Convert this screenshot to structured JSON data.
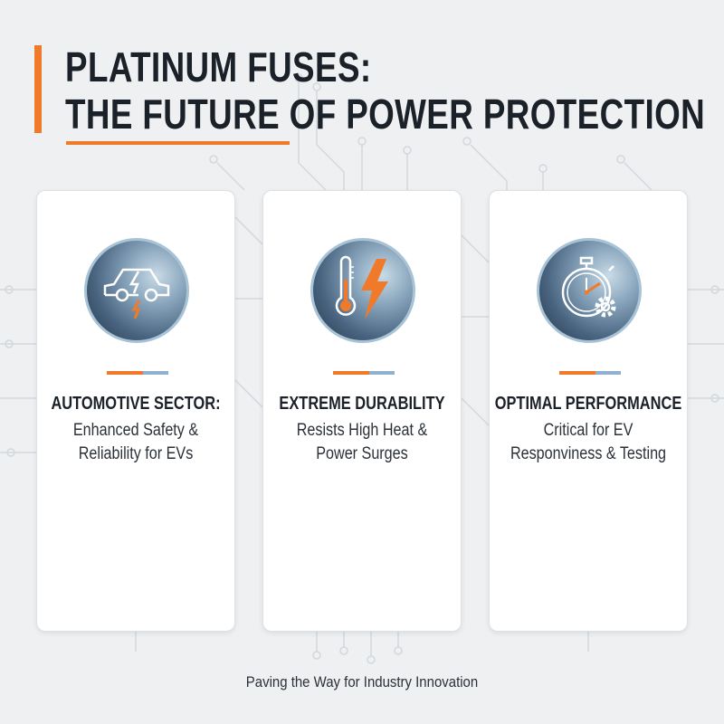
{
  "header": {
    "title_line1": "PLATINUM FUSES:",
    "title_line2": "THE FUTURE OF POWER PROTECTION"
  },
  "colors": {
    "accent": "#f07a2a",
    "secondary": "#8fb1cf",
    "text": "#1b2128"
  },
  "cards": [
    {
      "icon": "electric-car-icon",
      "title": "AUTOMOTIVE SECTOR:",
      "desc_line1": "Enhanced Safety &",
      "desc_line2": "Reliability for EVs"
    },
    {
      "icon": "thermometer-lightning-icon",
      "title": "EXTREME DURABILITY",
      "desc_line1": "Resists High Heat &",
      "desc_line2": "Power Surges"
    },
    {
      "icon": "stopwatch-gear-icon",
      "title": "OPTIMAL PERFORMANCE",
      "desc_line1": "Critical for EV",
      "desc_line2": "Responviness & Testing"
    }
  ],
  "footer": {
    "text": "Paving the Way for Industry Innovation"
  }
}
